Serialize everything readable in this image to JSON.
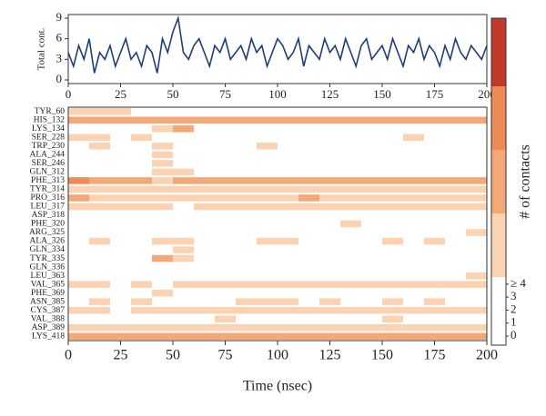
{
  "chart_data": [
    {
      "type": "line",
      "ylabel": "Total cont.",
      "x": [
        0,
        2.5,
        5,
        7.5,
        10,
        12.5,
        15,
        17.5,
        20,
        22.5,
        25,
        27.5,
        30,
        32.5,
        35,
        37.5,
        40,
        42.5,
        45,
        47.5,
        50,
        52.5,
        55,
        57.5,
        60,
        62.5,
        65,
        67.5,
        70,
        72.5,
        75,
        77.5,
        80,
        82.5,
        85,
        87.5,
        90,
        92.5,
        95,
        97.5,
        100,
        102.5,
        105,
        107.5,
        110,
        112.5,
        115,
        117.5,
        120,
        122.5,
        125,
        127.5,
        130,
        132.5,
        135,
        137.5,
        140,
        142.5,
        145,
        147.5,
        150,
        152.5,
        155,
        157.5,
        160,
        162.5,
        165,
        167.5,
        170,
        172.5,
        175,
        177.5,
        180,
        182.5,
        185,
        187.5,
        190,
        192.5,
        195,
        197.5,
        200
      ],
      "values": [
        4,
        2,
        5,
        3,
        6,
        1,
        4,
        3,
        5,
        2,
        4,
        6,
        3,
        4,
        2,
        5,
        4,
        1,
        6,
        4,
        7,
        9,
        4,
        3,
        5,
        6,
        4,
        2,
        5,
        4,
        6,
        3,
        4,
        5,
        3,
        6,
        4,
        5,
        2,
        4,
        6,
        5,
        3,
        4,
        6,
        2,
        5,
        4,
        3,
        6,
        4,
        5,
        3,
        6,
        4,
        2,
        5,
        6,
        3,
        4,
        5,
        3,
        6,
        4,
        2,
        5,
        4,
        6,
        3,
        5,
        4,
        2,
        5,
        3,
        6,
        4,
        3,
        5,
        4,
        3,
        5
      ],
      "color": "#1f3d7a",
      "xlim": [
        0,
        200
      ],
      "xticks": [
        0,
        25,
        50,
        75,
        100,
        125,
        150,
        175,
        200
      ],
      "ylim": [
        0,
        9
      ],
      "yticks": [
        0,
        3,
        6,
        9
      ]
    },
    {
      "type": "heatmap",
      "xlabel": "Time (nsec)",
      "colorbar_label": "# of contacts",
      "x_bins": [
        0,
        10,
        20,
        30,
        40,
        50,
        60,
        70,
        80,
        90,
        100,
        110,
        120,
        130,
        140,
        150,
        160,
        170,
        180,
        190,
        200
      ],
      "categories": [
        "TYR_60",
        "HIS_132",
        "LYS_134",
        "SER_228",
        "TRP_230",
        "ALA_244",
        "SER_246",
        "GLN_312",
        "PHE_313",
        "TYR_314",
        "PRO_316",
        "LEU_317",
        "ASP_318",
        "PHE_320",
        "ARG_325",
        "ALA_326",
        "GLN_334",
        "TYR_335",
        "GLN_336",
        "LEU_363",
        "VAL_365",
        "PHE_369",
        "ASN_385",
        "CYS_387",
        "VAL_388",
        "ASP_389",
        "LYS_418"
      ],
      "matrix": [
        [
          1,
          1,
          1,
          0,
          0,
          0,
          0,
          0,
          0,
          0,
          0,
          0,
          0,
          0,
          0,
          0,
          0,
          0,
          0,
          0
        ],
        [
          2,
          2,
          2,
          2,
          2,
          2,
          2,
          2,
          2,
          2,
          2,
          2,
          2,
          2,
          2,
          2,
          2,
          2,
          2,
          2
        ],
        [
          0,
          0,
          0,
          0,
          1,
          2,
          0,
          0,
          0,
          0,
          0,
          0,
          0,
          0,
          0,
          0,
          0,
          0,
          0,
          0
        ],
        [
          1,
          1,
          0,
          1,
          0,
          0,
          0,
          0,
          0,
          0,
          0,
          0,
          0,
          0,
          0,
          0,
          1,
          0,
          0,
          0
        ],
        [
          0,
          1,
          0,
          0,
          1,
          0,
          0,
          0,
          0,
          1,
          0,
          0,
          0,
          0,
          0,
          0,
          0,
          0,
          0,
          0
        ],
        [
          0,
          0,
          0,
          0,
          1,
          0,
          0,
          0,
          0,
          0,
          0,
          0,
          0,
          0,
          0,
          0,
          0,
          0,
          0,
          0
        ],
        [
          0,
          0,
          0,
          0,
          1,
          0,
          0,
          0,
          0,
          0,
          0,
          0,
          0,
          0,
          0,
          0,
          0,
          0,
          0,
          0
        ],
        [
          0,
          0,
          0,
          0,
          1,
          1,
          0,
          0,
          0,
          0,
          0,
          0,
          0,
          0,
          0,
          0,
          0,
          0,
          0,
          0
        ],
        [
          3,
          2,
          2,
          2,
          1,
          2,
          2,
          2,
          2,
          2,
          2,
          2,
          2,
          2,
          2,
          2,
          2,
          2,
          2,
          2
        ],
        [
          1,
          1,
          1,
          1,
          1,
          1,
          1,
          1,
          1,
          1,
          1,
          1,
          1,
          1,
          1,
          1,
          1,
          1,
          1,
          1
        ],
        [
          2,
          1,
          1,
          1,
          1,
          1,
          1,
          1,
          1,
          1,
          1,
          2,
          1,
          1,
          1,
          1,
          1,
          1,
          1,
          1
        ],
        [
          1,
          1,
          1,
          1,
          1,
          0,
          1,
          1,
          1,
          1,
          1,
          1,
          1,
          1,
          1,
          1,
          1,
          1,
          1,
          1
        ],
        [
          0,
          0,
          0,
          0,
          0,
          0,
          0,
          0,
          0,
          0,
          0,
          0,
          0,
          0,
          0,
          0,
          0,
          0,
          0,
          0
        ],
        [
          0,
          0,
          0,
          0,
          0,
          0,
          0,
          0,
          0,
          0,
          0,
          0,
          0,
          1,
          0,
          0,
          0,
          0,
          0,
          0
        ],
        [
          0,
          0,
          0,
          0,
          0,
          0,
          0,
          0,
          0,
          0,
          0,
          0,
          0,
          0,
          0,
          0,
          0,
          0,
          0,
          1
        ],
        [
          0,
          1,
          0,
          0,
          1,
          1,
          0,
          0,
          0,
          1,
          1,
          0,
          0,
          0,
          0,
          1,
          0,
          1,
          0,
          0
        ],
        [
          0,
          0,
          0,
          0,
          0,
          1,
          0,
          0,
          0,
          0,
          0,
          0,
          0,
          0,
          0,
          0,
          0,
          0,
          0,
          0
        ],
        [
          0,
          0,
          0,
          0,
          2,
          1,
          0,
          0,
          0,
          0,
          0,
          0,
          0,
          0,
          0,
          0,
          0,
          0,
          0,
          0
        ],
        [
          0,
          0,
          0,
          0,
          0,
          0,
          0,
          0,
          0,
          0,
          0,
          0,
          0,
          0,
          0,
          0,
          0,
          0,
          0,
          0
        ],
        [
          0,
          0,
          0,
          0,
          0,
          0,
          0,
          0,
          0,
          0,
          0,
          0,
          0,
          0,
          0,
          0,
          0,
          0,
          0,
          1
        ],
        [
          1,
          1,
          0,
          1,
          0,
          1,
          1,
          1,
          1,
          1,
          1,
          1,
          1,
          1,
          1,
          1,
          1,
          1,
          1,
          1
        ],
        [
          0,
          0,
          0,
          0,
          1,
          0,
          0,
          0,
          0,
          0,
          0,
          0,
          0,
          0,
          0,
          0,
          0,
          0,
          0,
          0
        ],
        [
          0,
          1,
          0,
          1,
          0,
          0,
          0,
          0,
          1,
          1,
          1,
          0,
          1,
          0,
          0,
          1,
          0,
          1,
          0,
          0
        ],
        [
          1,
          1,
          0,
          1,
          1,
          1,
          1,
          1,
          1,
          1,
          1,
          1,
          1,
          1,
          1,
          1,
          1,
          1,
          1,
          1
        ],
        [
          0,
          0,
          0,
          0,
          0,
          0,
          0,
          1,
          0,
          0,
          0,
          0,
          0,
          0,
          0,
          1,
          0,
          0,
          0,
          0
        ],
        [
          1,
          1,
          1,
          1,
          1,
          1,
          1,
          1,
          1,
          1,
          1,
          1,
          1,
          1,
          1,
          1,
          1,
          1,
          1,
          1
        ],
        [
          2,
          2,
          2,
          2,
          2,
          2,
          2,
          2,
          2,
          2,
          2,
          2,
          2,
          2,
          2,
          2,
          2,
          2,
          2,
          2
        ]
      ],
      "colors": [
        "#ffffff",
        "#fbd3b3",
        "#f4a878",
        "#ee8a55",
        "#c0392b"
      ],
      "xlim": [
        0,
        200
      ],
      "xticks": [
        0,
        25,
        50,
        75,
        100,
        125,
        150,
        175,
        200
      ],
      "colorbar_ticks": [
        0,
        1,
        2,
        3,
        {
          "value": 4,
          "label": "≥ 4"
        }
      ]
    }
  ]
}
